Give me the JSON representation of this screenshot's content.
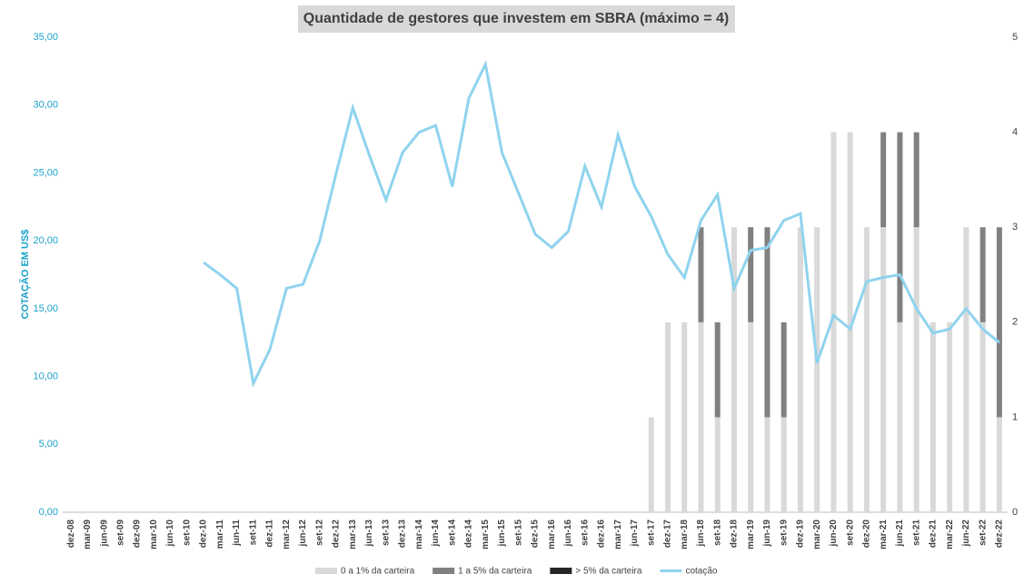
{
  "chart_data": {
    "type": "bar-line",
    "title": "Quantidade de gestores que investem em SBRA (máximo = 4)",
    "ylabel": "COTAÇÃO EM US$",
    "categories": [
      "dez-08",
      "mar-09",
      "jun-09",
      "set-09",
      "dez-09",
      "mar-10",
      "jun-10",
      "set-10",
      "dez-10",
      "mar-11",
      "jun-11",
      "set-11",
      "dez-11",
      "mar-12",
      "jun-12",
      "set-12",
      "dez-12",
      "mar-13",
      "jun-13",
      "set-13",
      "dez-13",
      "mar-14",
      "jun-14",
      "set-14",
      "dez-14",
      "mar-15",
      "jun-15",
      "set-15",
      "dez-15",
      "mar-16",
      "jun-16",
      "set-16",
      "dez-16",
      "mar-17",
      "jun-17",
      "set-17",
      "dez-17",
      "mar-18",
      "jun-18",
      "set-18",
      "dez-18",
      "mar-19",
      "jun-19",
      "set-19",
      "dez-19",
      "mar-20",
      "jun-20",
      "set-20",
      "dez-20",
      "mar-21",
      "jun-21",
      "set-21",
      "dez-21",
      "mar-22",
      "jun-22",
      "set-22",
      "dez-22"
    ],
    "series": [
      {
        "name": "0 a 1% da carteira",
        "color": "#d9d9d9",
        "axis": "y2",
        "kind": "bar",
        "values": [
          null,
          null,
          null,
          null,
          null,
          null,
          null,
          null,
          null,
          null,
          null,
          null,
          null,
          null,
          null,
          null,
          null,
          null,
          null,
          null,
          null,
          null,
          null,
          null,
          null,
          null,
          null,
          null,
          null,
          null,
          null,
          null,
          null,
          null,
          null,
          1,
          2,
          2,
          2,
          1,
          3,
          2,
          1,
          1,
          3,
          3,
          4,
          4,
          3,
          3,
          2,
          3,
          2,
          2,
          3,
          2,
          1
        ]
      },
      {
        "name": "1 a 5% da carteira",
        "color": "#808080",
        "axis": "y2",
        "kind": "bar",
        "values": [
          null,
          null,
          null,
          null,
          null,
          null,
          null,
          null,
          null,
          null,
          null,
          null,
          null,
          null,
          null,
          null,
          null,
          null,
          null,
          null,
          null,
          null,
          null,
          null,
          null,
          null,
          null,
          null,
          null,
          null,
          null,
          null,
          null,
          null,
          null,
          null,
          null,
          null,
          1,
          1,
          null,
          1,
          2,
          1,
          null,
          null,
          null,
          null,
          null,
          1,
          2,
          1,
          null,
          null,
          null,
          1,
          2
        ]
      },
      {
        "name": "> 5% da carteira",
        "color": "#262626",
        "axis": "y2",
        "kind": "bar",
        "values": [
          null,
          null,
          null,
          null,
          null,
          null,
          null,
          null,
          null,
          null,
          null,
          null,
          null,
          null,
          null,
          null,
          null,
          null,
          null,
          null,
          null,
          null,
          null,
          null,
          null,
          null,
          null,
          null,
          null,
          null,
          null,
          null,
          null,
          null,
          null,
          null,
          null,
          null,
          null,
          null,
          null,
          null,
          null,
          null,
          null,
          null,
          null,
          null,
          null,
          null,
          null,
          null,
          null,
          null,
          null,
          null,
          null
        ]
      },
      {
        "name": "cotação",
        "color": "#8fd3ee",
        "axis": "y",
        "kind": "line",
        "values": [
          null,
          null,
          null,
          null,
          null,
          null,
          null,
          null,
          18.4,
          17.5,
          16.5,
          9.5,
          12,
          16.5,
          16.8,
          20,
          25,
          29.8,
          26.3,
          23,
          26.5,
          28,
          28.5,
          24,
          30.5,
          33,
          26.5,
          23.5,
          20.5,
          19.5,
          20.7,
          25.5,
          22.5,
          27.8,
          24,
          21.8,
          19,
          17.3,
          21.5,
          23.4,
          16.5,
          19.3,
          19.5,
          21.5,
          22,
          11,
          14.5,
          13.5,
          17,
          17.3,
          17.5,
          15,
          13.2,
          13.5,
          15,
          13.5,
          12.5
        ]
      }
    ],
    "ylim": [
      0,
      35
    ],
    "yticks": [
      {
        "value": 0,
        "label": "0,00"
      },
      {
        "value": 5,
        "label": "5,00"
      },
      {
        "value": 10,
        "label": "10,00"
      },
      {
        "value": 15,
        "label": "15,00"
      },
      {
        "value": 20,
        "label": "20,00"
      },
      {
        "value": 25,
        "label": "25,00"
      },
      {
        "value": 30,
        "label": "30,00"
      },
      {
        "value": 35,
        "label": "35,00"
      }
    ],
    "y2lim": [
      0,
      5
    ],
    "y2ticks": [
      0,
      1,
      2,
      3,
      4,
      5
    ],
    "legend": "bottom"
  }
}
